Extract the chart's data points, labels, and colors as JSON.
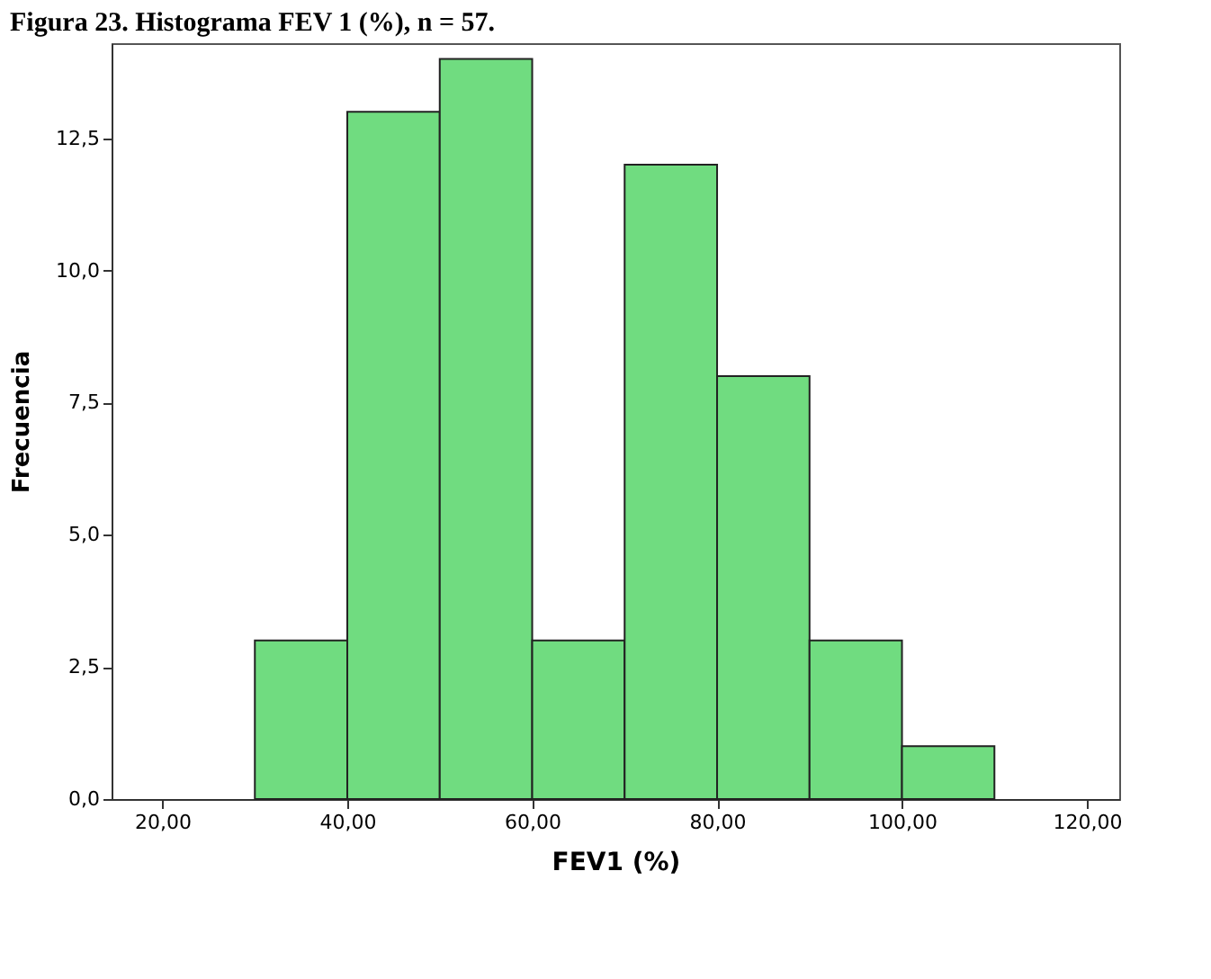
{
  "chart_data": {
    "type": "histogram",
    "title": "Figura 23. Histograma FEV 1 (%), n = 57.",
    "xlabel": "FEV1 (%)",
    "ylabel": "Frecuencia",
    "bins": [
      30,
      40,
      50,
      60,
      70,
      80,
      90,
      100,
      110
    ],
    "values": [
      3,
      13,
      14,
      3,
      12,
      8,
      3,
      1
    ],
    "color": "#70dc80",
    "xlim": [
      14.5,
      123.5
    ],
    "ylim": [
      0,
      14.3
    ],
    "xticks": [
      {
        "value": 20,
        "label": "20,00"
      },
      {
        "value": 40,
        "label": "40,00"
      },
      {
        "value": 60,
        "label": "60,00"
      },
      {
        "value": 80,
        "label": "80,00"
      },
      {
        "value": 100,
        "label": "100,00"
      },
      {
        "value": 120,
        "label": "120,00"
      }
    ],
    "yticks": [
      {
        "value": 0,
        "label": "0,0"
      },
      {
        "value": 2.5,
        "label": "2,5"
      },
      {
        "value": 5,
        "label": "5,0"
      },
      {
        "value": 7.5,
        "label": "7,5"
      },
      {
        "value": 10,
        "label": "10,0"
      },
      {
        "value": 12.5,
        "label": "12,5"
      }
    ],
    "grid": false
  }
}
